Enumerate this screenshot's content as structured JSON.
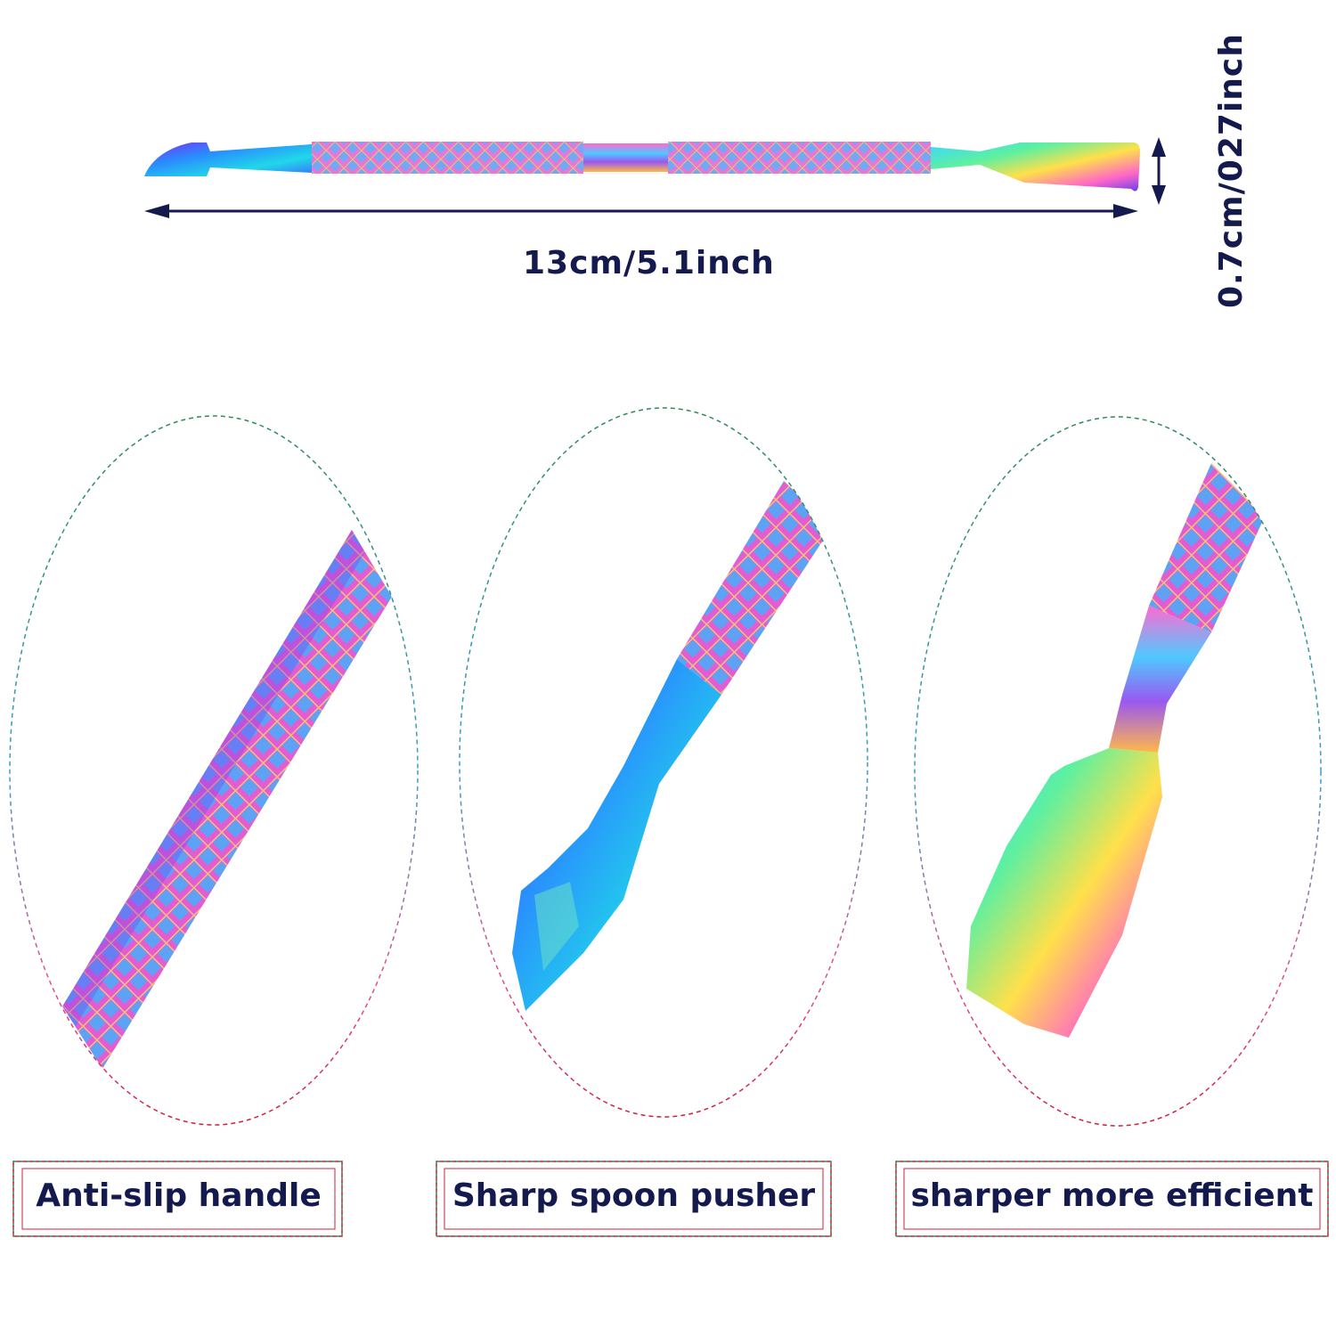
{
  "dimensions": {
    "length": "13cm/5.1inch",
    "width": "0.7cm/027inch"
  },
  "features": [
    {
      "label": "Anti-slip handle"
    },
    {
      "label": "Sharp spoon pusher"
    },
    {
      "label": "sharper more efficient"
    }
  ],
  "colors": {
    "text": "#141a4e",
    "dashed_green": "#2e8b57",
    "dashed_red": "#d0203a"
  }
}
